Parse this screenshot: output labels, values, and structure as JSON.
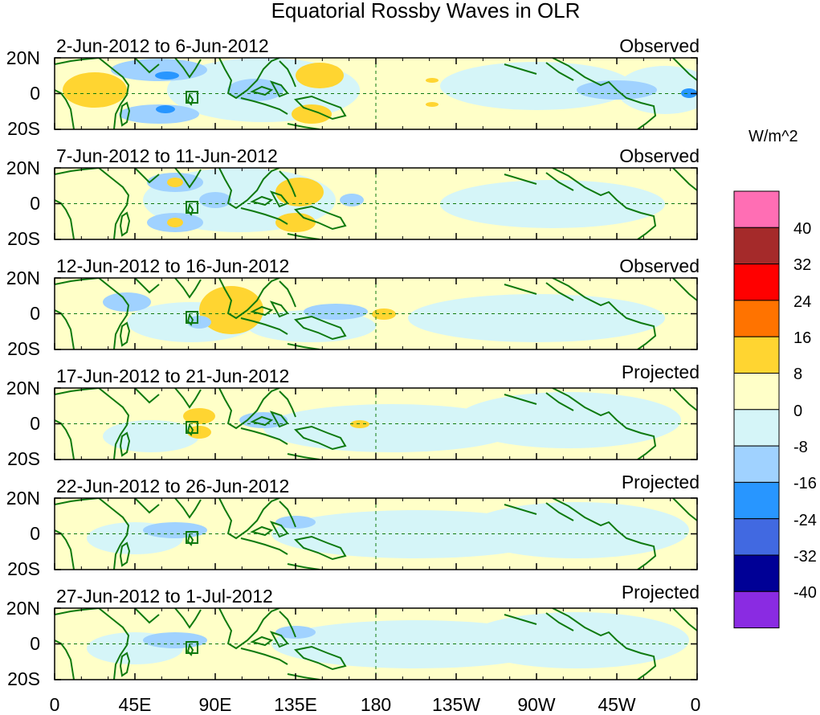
{
  "title": "Equatorial Rossby Waves in OLR",
  "panels": [
    {
      "date_range": "2-Jun-2012 to 6-Jun-2012",
      "status": "Observed"
    },
    {
      "date_range": "7-Jun-2012 to 11-Jun-2012",
      "status": "Observed"
    },
    {
      "date_range": "12-Jun-2012 to 16-Jun-2012",
      "status": "Observed"
    },
    {
      "date_range": "17-Jun-2012 to 21-Jun-2012",
      "status": "Projected"
    },
    {
      "date_range": "22-Jun-2012 to 26-Jun-2012",
      "status": "Projected"
    },
    {
      "date_range": "27-Jun-2012 to 1-Jul-2012",
      "status": "Projected"
    }
  ],
  "lat_labels": [
    "20N",
    "0",
    "20S"
  ],
  "lon_labels": [
    "0",
    "45E",
    "90E",
    "135E",
    "180",
    "135W",
    "90W",
    "45W",
    "0"
  ],
  "colorbar": {
    "units": "W/m^2",
    "labels": [
      "40",
      "32",
      "24",
      "16",
      "8",
      "0",
      "-8",
      "-16",
      "-24",
      "-32",
      "-40"
    ],
    "colors": [
      "#ff6eb4",
      "#a52a2a",
      "#ff0000",
      "#ff7300",
      "#ffd531",
      "#ffffc8",
      "#d5f5f8",
      "#a0d2ff",
      "#2896ff",
      "#4169e1",
      "#000096",
      "#8a2be2"
    ]
  }
}
